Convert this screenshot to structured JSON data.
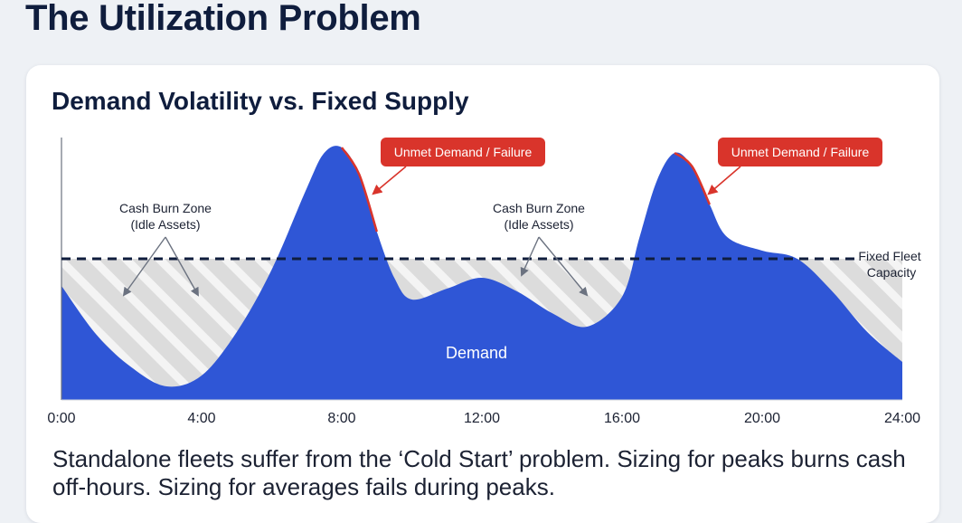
{
  "page": {
    "title": "The Utilization Problem"
  },
  "card": {
    "title": "Demand Volatility vs. Fixed Supply",
    "caption": "Standalone fleets suffer from the ‘Cold Start’ problem. Sizing for peaks burns cash off-hours. Sizing for averages fails during peaks."
  },
  "colors": {
    "demand": "#2f56d6",
    "failure": "#d9342b",
    "idle_fill": "#dcdcdc",
    "capacity_line": "#0f1d3d"
  },
  "chart_data": {
    "type": "area",
    "x_tick_labels": [
      "0:00",
      "4:00",
      "8:00",
      "12:00",
      "16:00",
      "20:00",
      "24:00"
    ],
    "xlim": [
      0,
      24
    ],
    "ylim": [
      0,
      100
    ],
    "series": [
      {
        "name": "Demand",
        "x": [
          0,
          1,
          2,
          3,
          4,
          5,
          6,
          7,
          7.5,
          8,
          8.5,
          9,
          9.5,
          10,
          11,
          12,
          13,
          14,
          15,
          16,
          16.5,
          17,
          17.5,
          18,
          18.5,
          19,
          20,
          21,
          22,
          23,
          24
        ],
        "y": [
          42,
          24,
          12,
          5,
          9,
          25,
          48,
          78,
          91,
          93,
          83,
          62,
          45,
          37,
          41,
          45,
          40,
          32,
          27,
          38,
          60,
          81,
          91,
          86,
          72,
          60,
          55,
          52,
          40,
          25,
          14
        ]
      }
    ],
    "capacity": {
      "label": "Fixed Fleet Capacity",
      "value": 52
    },
    "annotations": [
      {
        "label": "Unmet Demand / Failure",
        "x": 8.3
      },
      {
        "label": "Unmet Demand / Failure",
        "x": 17.8
      },
      {
        "label_line1": "Cash Burn Zone",
        "label_line2": "(Idle Assets)",
        "x": 3
      },
      {
        "label_line1": "Cash Burn Zone",
        "label_line2": "(Idle Assets)",
        "x": 14
      }
    ],
    "area_label": "Demand",
    "grid": false,
    "legend": "none"
  }
}
